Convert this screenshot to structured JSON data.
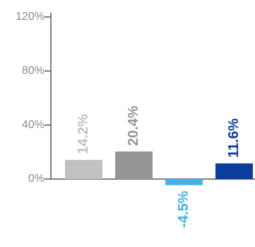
{
  "chart_data": {
    "type": "bar",
    "categories": [
      null,
      null,
      null,
      null
    ],
    "values": [
      14.2,
      20.4,
      -4.5,
      11.6
    ],
    "value_labels": [
      "14.2%",
      "20.4%",
      "-4.5%",
      "11.6%"
    ],
    "colors": [
      "#c1c1c3",
      "#959596",
      "#3fb3e6",
      "#0b3d9f"
    ],
    "ylim": [
      0,
      120
    ],
    "yticks": [
      {
        "value": 0,
        "label": "0%"
      },
      {
        "value": 40,
        "label": "40%"
      },
      {
        "value": 80,
        "label": "80%"
      },
      {
        "value": 120,
        "label": "120%"
      }
    ]
  }
}
